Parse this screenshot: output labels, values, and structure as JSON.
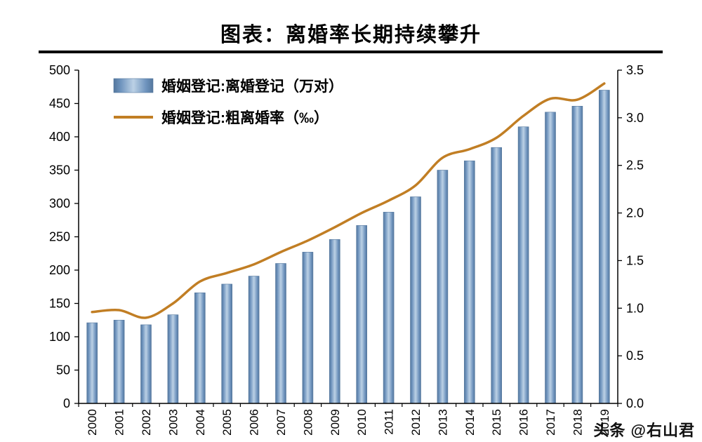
{
  "header": {
    "title": "图表：离婚率长期持续攀升"
  },
  "watermark": {
    "text": "头条 @右山君"
  },
  "chart_data": {
    "type": "bar",
    "title": "图表：离婚率长期持续攀升",
    "categories": [
      "2000",
      "2001",
      "2002",
      "2003",
      "2004",
      "2005",
      "2006",
      "2007",
      "2008",
      "2009",
      "2010",
      "2011",
      "2012",
      "2013",
      "2014",
      "2015",
      "2016",
      "2017",
      "2018",
      "2019"
    ],
    "series": [
      {
        "name": "婚姻登记:离婚登记（万对）",
        "type": "bar",
        "axis": "left",
        "color_dark": "#54779D",
        "color_mid": "#6F94BE",
        "color_light": "#BCD1E5",
        "values": [
          121,
          125,
          118,
          133,
          166,
          179,
          191,
          210,
          227,
          246,
          267,
          287,
          310,
          350,
          364,
          384,
          415,
          437,
          446,
          470
        ]
      },
      {
        "name": "婚姻登记:粗离婚率（‰）",
        "type": "line",
        "axis": "right",
        "color": "#C17E24",
        "values": [
          0.96,
          0.98,
          0.9,
          1.05,
          1.28,
          1.37,
          1.46,
          1.59,
          1.71,
          1.85,
          2.0,
          2.13,
          2.29,
          2.58,
          2.67,
          2.79,
          3.02,
          3.2,
          3.19,
          3.36
        ]
      }
    ],
    "left_axis": {
      "min": 0,
      "max": 500,
      "step": 50,
      "ticks": [
        0,
        50,
        100,
        150,
        200,
        250,
        300,
        350,
        400,
        450,
        500
      ]
    },
    "right_axis": {
      "min": 0,
      "max": 3.5,
      "step": 0.5,
      "ticks": [
        0.0,
        0.5,
        1.0,
        1.5,
        2.0,
        2.5,
        3.0,
        3.5
      ]
    },
    "legend_position": "top-left",
    "grid": false
  }
}
